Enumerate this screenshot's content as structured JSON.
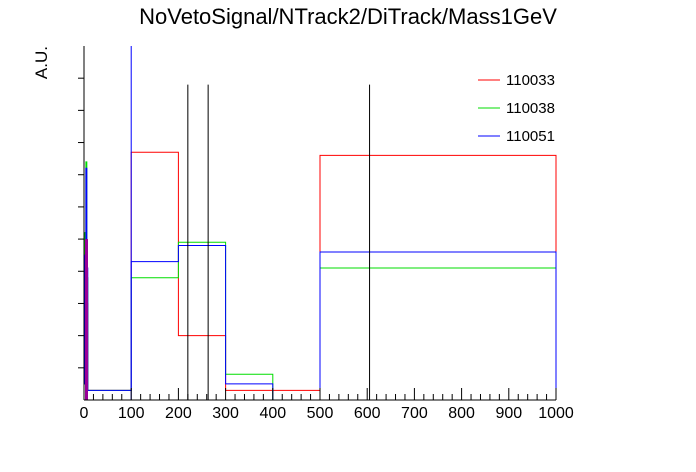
{
  "chart_data": {
    "type": "line",
    "title": "NoVetoSignal/NTrack2/DiTrack/Mass1GeV",
    "xlabel": "",
    "ylabel": "A.U.",
    "xlim": [
      0,
      1000
    ],
    "ylim": [
      0,
      1.1
    ],
    "x_ticks": [
      "0",
      "100",
      "200",
      "300",
      "400",
      "500",
      "600",
      "700",
      "800",
      "900",
      "1000"
    ],
    "legend_position": "top-right",
    "bin_edges": [
      0,
      2,
      4,
      6,
      8,
      100,
      200,
      300,
      400,
      500,
      1000
    ],
    "series": [
      {
        "name": "110033",
        "color": "#ff0000",
        "values": [
          0.05,
          0.49,
          0.42,
          0.3,
          0.03,
          0.77,
          0.2,
          0.03,
          0.03,
          0.76
        ]
      },
      {
        "name": "110038",
        "color": "#00dd00",
        "values": [
          0.05,
          0.52,
          0.74,
          0.38,
          0.03,
          0.38,
          0.49,
          0.08,
          0.0,
          0.41
        ]
      },
      {
        "name": "110051",
        "color": "#0000ff",
        "values": [
          0.05,
          0.45,
          0.72,
          0.41,
          0.03,
          0.43,
          0.48,
          0.05,
          0.0,
          0.46
        ]
      }
    ],
    "overflow_line_x": 100,
    "vertical_markers_x": [
      220,
      263,
      605
    ],
    "marker_top": 0.98
  }
}
